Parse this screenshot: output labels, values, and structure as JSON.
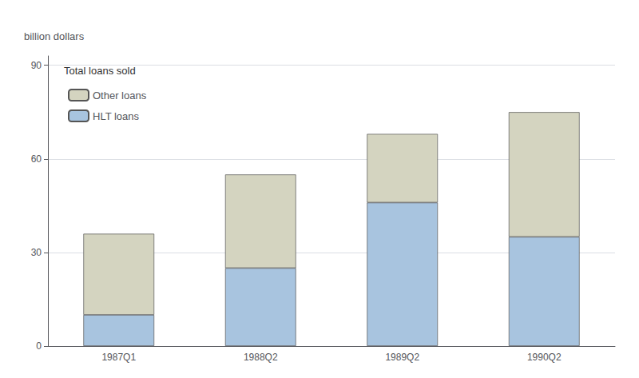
{
  "chart_data": {
    "type": "bar",
    "stacked": true,
    "categories": [
      "1987Q1",
      "1988Q2",
      "1989Q2",
      "1990Q2"
    ],
    "series": [
      {
        "name": "HLT loans",
        "color": "#a8c4df",
        "values": [
          10,
          25,
          46,
          35
        ]
      },
      {
        "name": "Other loans",
        "color": "#d4d4c0",
        "values": [
          26,
          30,
          22,
          40
        ]
      }
    ],
    "ylabel": "billion dollars",
    "legend_title": "Total loans sold",
    "legend": "upper left",
    "ylim": [
      0,
      93
    ],
    "yticks": [
      0,
      30,
      60,
      90
    ],
    "grid": true
  }
}
